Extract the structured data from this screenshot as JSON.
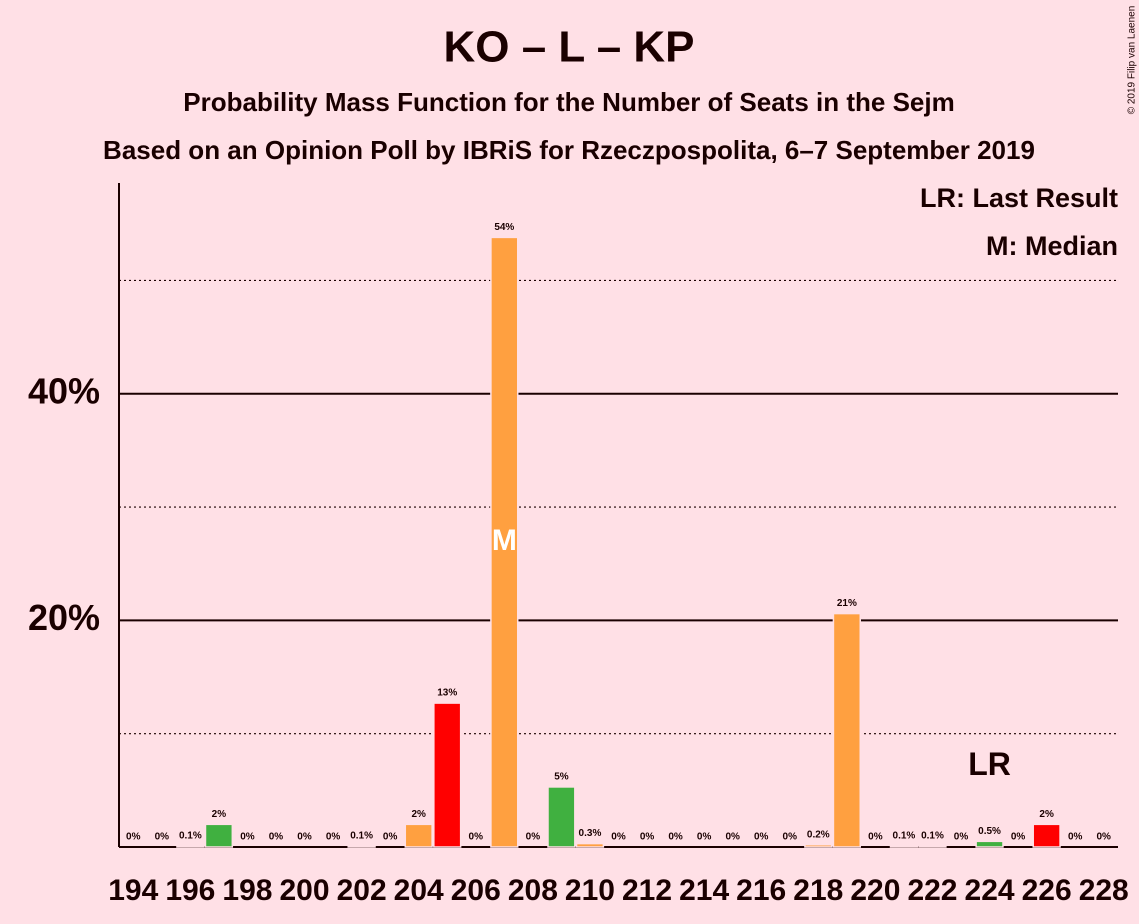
{
  "chart_data": {
    "type": "bar",
    "title": "KO – L – KP",
    "subtitle": "Probability Mass Function for the Number of Seats in the Sejm",
    "subtitle2": "Based on an Opinion Poll by IBRiS for Rzeczpospolita, 6–7 September 2019",
    "copyright": "© 2019 Filip van Laenen",
    "legend": [
      "LR: Last Result",
      "M: Median"
    ],
    "categories": [
      194,
      null,
      196,
      null,
      198,
      null,
      200,
      null,
      202,
      null,
      204,
      null,
      206,
      null,
      208,
      null,
      210,
      null,
      212,
      null,
      214,
      null,
      216,
      null,
      218,
      null,
      220,
      null,
      222,
      null,
      224,
      null,
      226,
      null,
      228
    ],
    "values": [
      0,
      0,
      0.1,
      2,
      0,
      0,
      0,
      0,
      0.1,
      0,
      2,
      12.7,
      0,
      53.8,
      0,
      5.3,
      0.3,
      0,
      0,
      0,
      0,
      0,
      0,
      0,
      0.2,
      20.6,
      0,
      0.1,
      0.1,
      0,
      0.5,
      0,
      2,
      0,
      0
    ],
    "value_labels": [
      "0%",
      "0%",
      "0.1%",
      "2%",
      "0%",
      "0%",
      "0%",
      "0%",
      "0.1%",
      "0%",
      "2%",
      "13%",
      "0%",
      "54%",
      "0%",
      "5%",
      "0.3%",
      "0%",
      "0%",
      "0%",
      "0%",
      "0%",
      "0%",
      "0%",
      "0.2%",
      "21%",
      "0%",
      "0.1%",
      "0.1%",
      "0%",
      "0.5%",
      "0%",
      "2%",
      "0%",
      "0%"
    ],
    "colors": [
      "#ffa040",
      "#ffa040",
      "#ffa040",
      "#40b040",
      "#ffa040",
      "#ffa040",
      "#ffa040",
      "#ffa040",
      "#ffa040",
      "#ffa040",
      "#ffa040",
      "#ff0000",
      "#ffa040",
      "#ffa040",
      "#ffa040",
      "#40b040",
      "#ffa040",
      "#ffa040",
      "#ffa040",
      "#ffa040",
      "#ffa040",
      "#ffa040",
      "#ffa040",
      "#ffa040",
      "#ffa040",
      "#ffa040",
      "#ffa040",
      "#ffa040",
      "#ffa040",
      "#ffa040",
      "#40b040",
      "#ffa040",
      "#ff0000",
      "#ffa040",
      "#ffa040"
    ],
    "median_label": "M",
    "median_index": 13,
    "last_result_label": "LR",
    "last_result_index": 30,
    "ylim": [
      0,
      58.6
    ],
    "yticks": [
      {
        "value": 20,
        "label": "20%"
      },
      {
        "value": 40,
        "label": "40%"
      }
    ],
    "minor_gridlines": [
      10,
      30,
      50
    ],
    "grid": true
  }
}
